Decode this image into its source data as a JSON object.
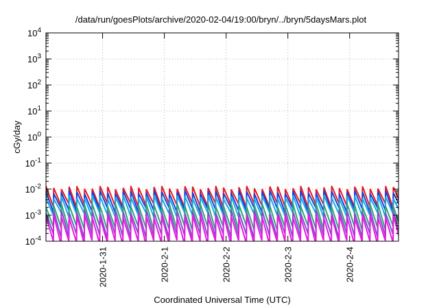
{
  "chart_data": {
    "type": "line",
    "title": "/data/run/goesPlots/archive/2020-02-04/19:00/bryn/../bryn/5daysMars.plot",
    "xlabel": "Coordinated Universal Time (UTC)",
    "ylabel": "cGy/day",
    "y_scale": "log",
    "ylim_exponent": [
      -4,
      4
    ],
    "y_tick_labels": [
      {
        "base": "10",
        "exp": "4"
      },
      {
        "base": "10",
        "exp": "3"
      },
      {
        "base": "10",
        "exp": "2"
      },
      {
        "base": "10",
        "exp": "1"
      },
      {
        "base": "10",
        "exp": "0"
      },
      {
        "base": "10",
        "exp": "-1"
      },
      {
        "base": "10",
        "exp": "-2"
      },
      {
        "base": "10",
        "exp": "-3"
      },
      {
        "base": "10",
        "exp": "-4"
      }
    ],
    "x_range_days": [
      "2020-01-30 02:00",
      "2020-02-04 19:00"
    ],
    "x_tick_labels": [
      "2020-1-31",
      "2020-2-1",
      "2020-2-2",
      "2020-2-3",
      "2020-2-4"
    ],
    "grid": true,
    "sawtooth_period_hours": 3,
    "series": [
      {
        "color": "#e8191e",
        "peak": 0.0115,
        "trough": 0.0024
      },
      {
        "color": "#1a3fd6",
        "peak": 0.0078,
        "trough": 0.0016
      },
      {
        "color": "#17a8e6",
        "peak": 0.005,
        "trough": 0.00105
      },
      {
        "color": "#2ea37a",
        "peak": 0.0024,
        "trough": 0.00032
      },
      {
        "color": "#7a52c9",
        "peak": 0.0014,
        "trough": 0.00016
      },
      {
        "color": "#e619e0",
        "peak": 0.0009,
        "trough": 9e-05
      }
    ]
  }
}
